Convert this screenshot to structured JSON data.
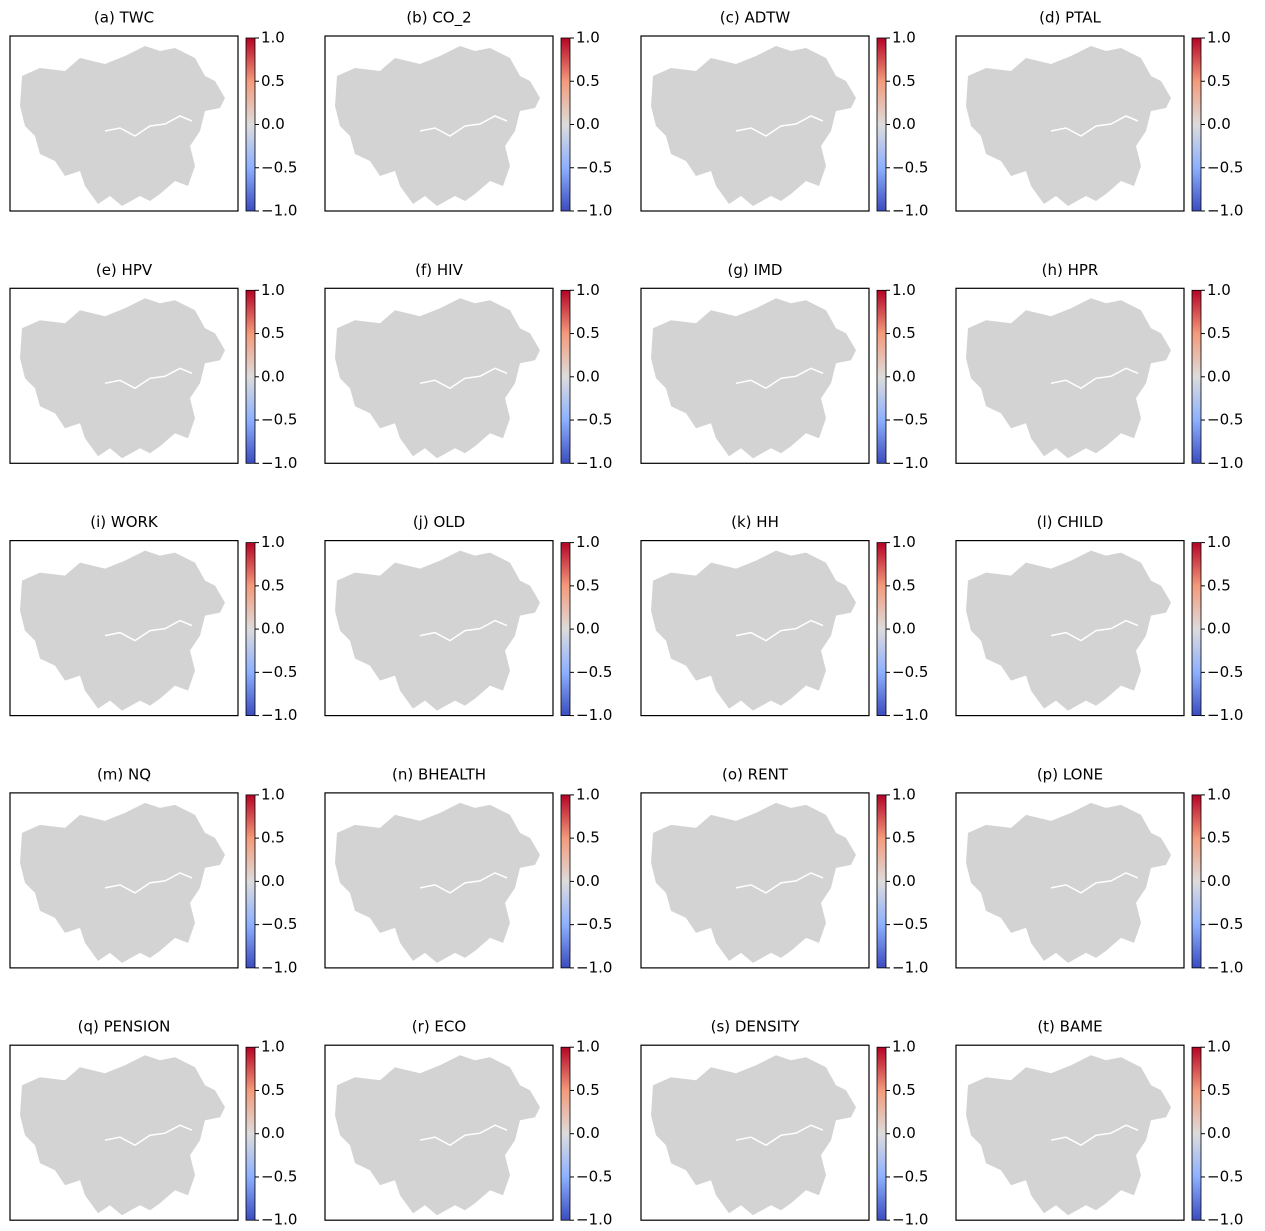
{
  "panels": [
    {
      "title": "(a) TWC"
    },
    {
      "title": "(b) CO_2"
    },
    {
      "title": "(c) ADTW"
    },
    {
      "title": "(d) PTAL"
    },
    {
      "title": "(e) HPV"
    },
    {
      "title": "(f) HIV"
    },
    {
      "title": "(g) IMD"
    },
    {
      "title": "(h) HPR"
    },
    {
      "title": "(i) WORK"
    },
    {
      "title": "(j) OLD"
    },
    {
      "title": "(k) HH"
    },
    {
      "title": "(l) CHILD"
    },
    {
      "title": "(m) NQ"
    },
    {
      "title": "(n) BHEALTH"
    },
    {
      "title": "(o) RENT"
    },
    {
      "title": "(p) LONE"
    },
    {
      "title": "(q) PENSION"
    },
    {
      "title": "(r) ECO"
    },
    {
      "title": "(s) DENSITY"
    },
    {
      "title": "(t) BAME"
    }
  ],
  "colorbar": {
    "lim": [
      -1,
      1
    ],
    "ticks": [
      {
        "value": 1,
        "label": "1.0"
      },
      {
        "value": 0.5,
        "label": "0.5"
      },
      {
        "value": 0,
        "label": "0.0"
      },
      {
        "value": -0.5,
        "label": "−0.5"
      },
      {
        "value": -1,
        "label": "−1.0"
      }
    ]
  }
}
